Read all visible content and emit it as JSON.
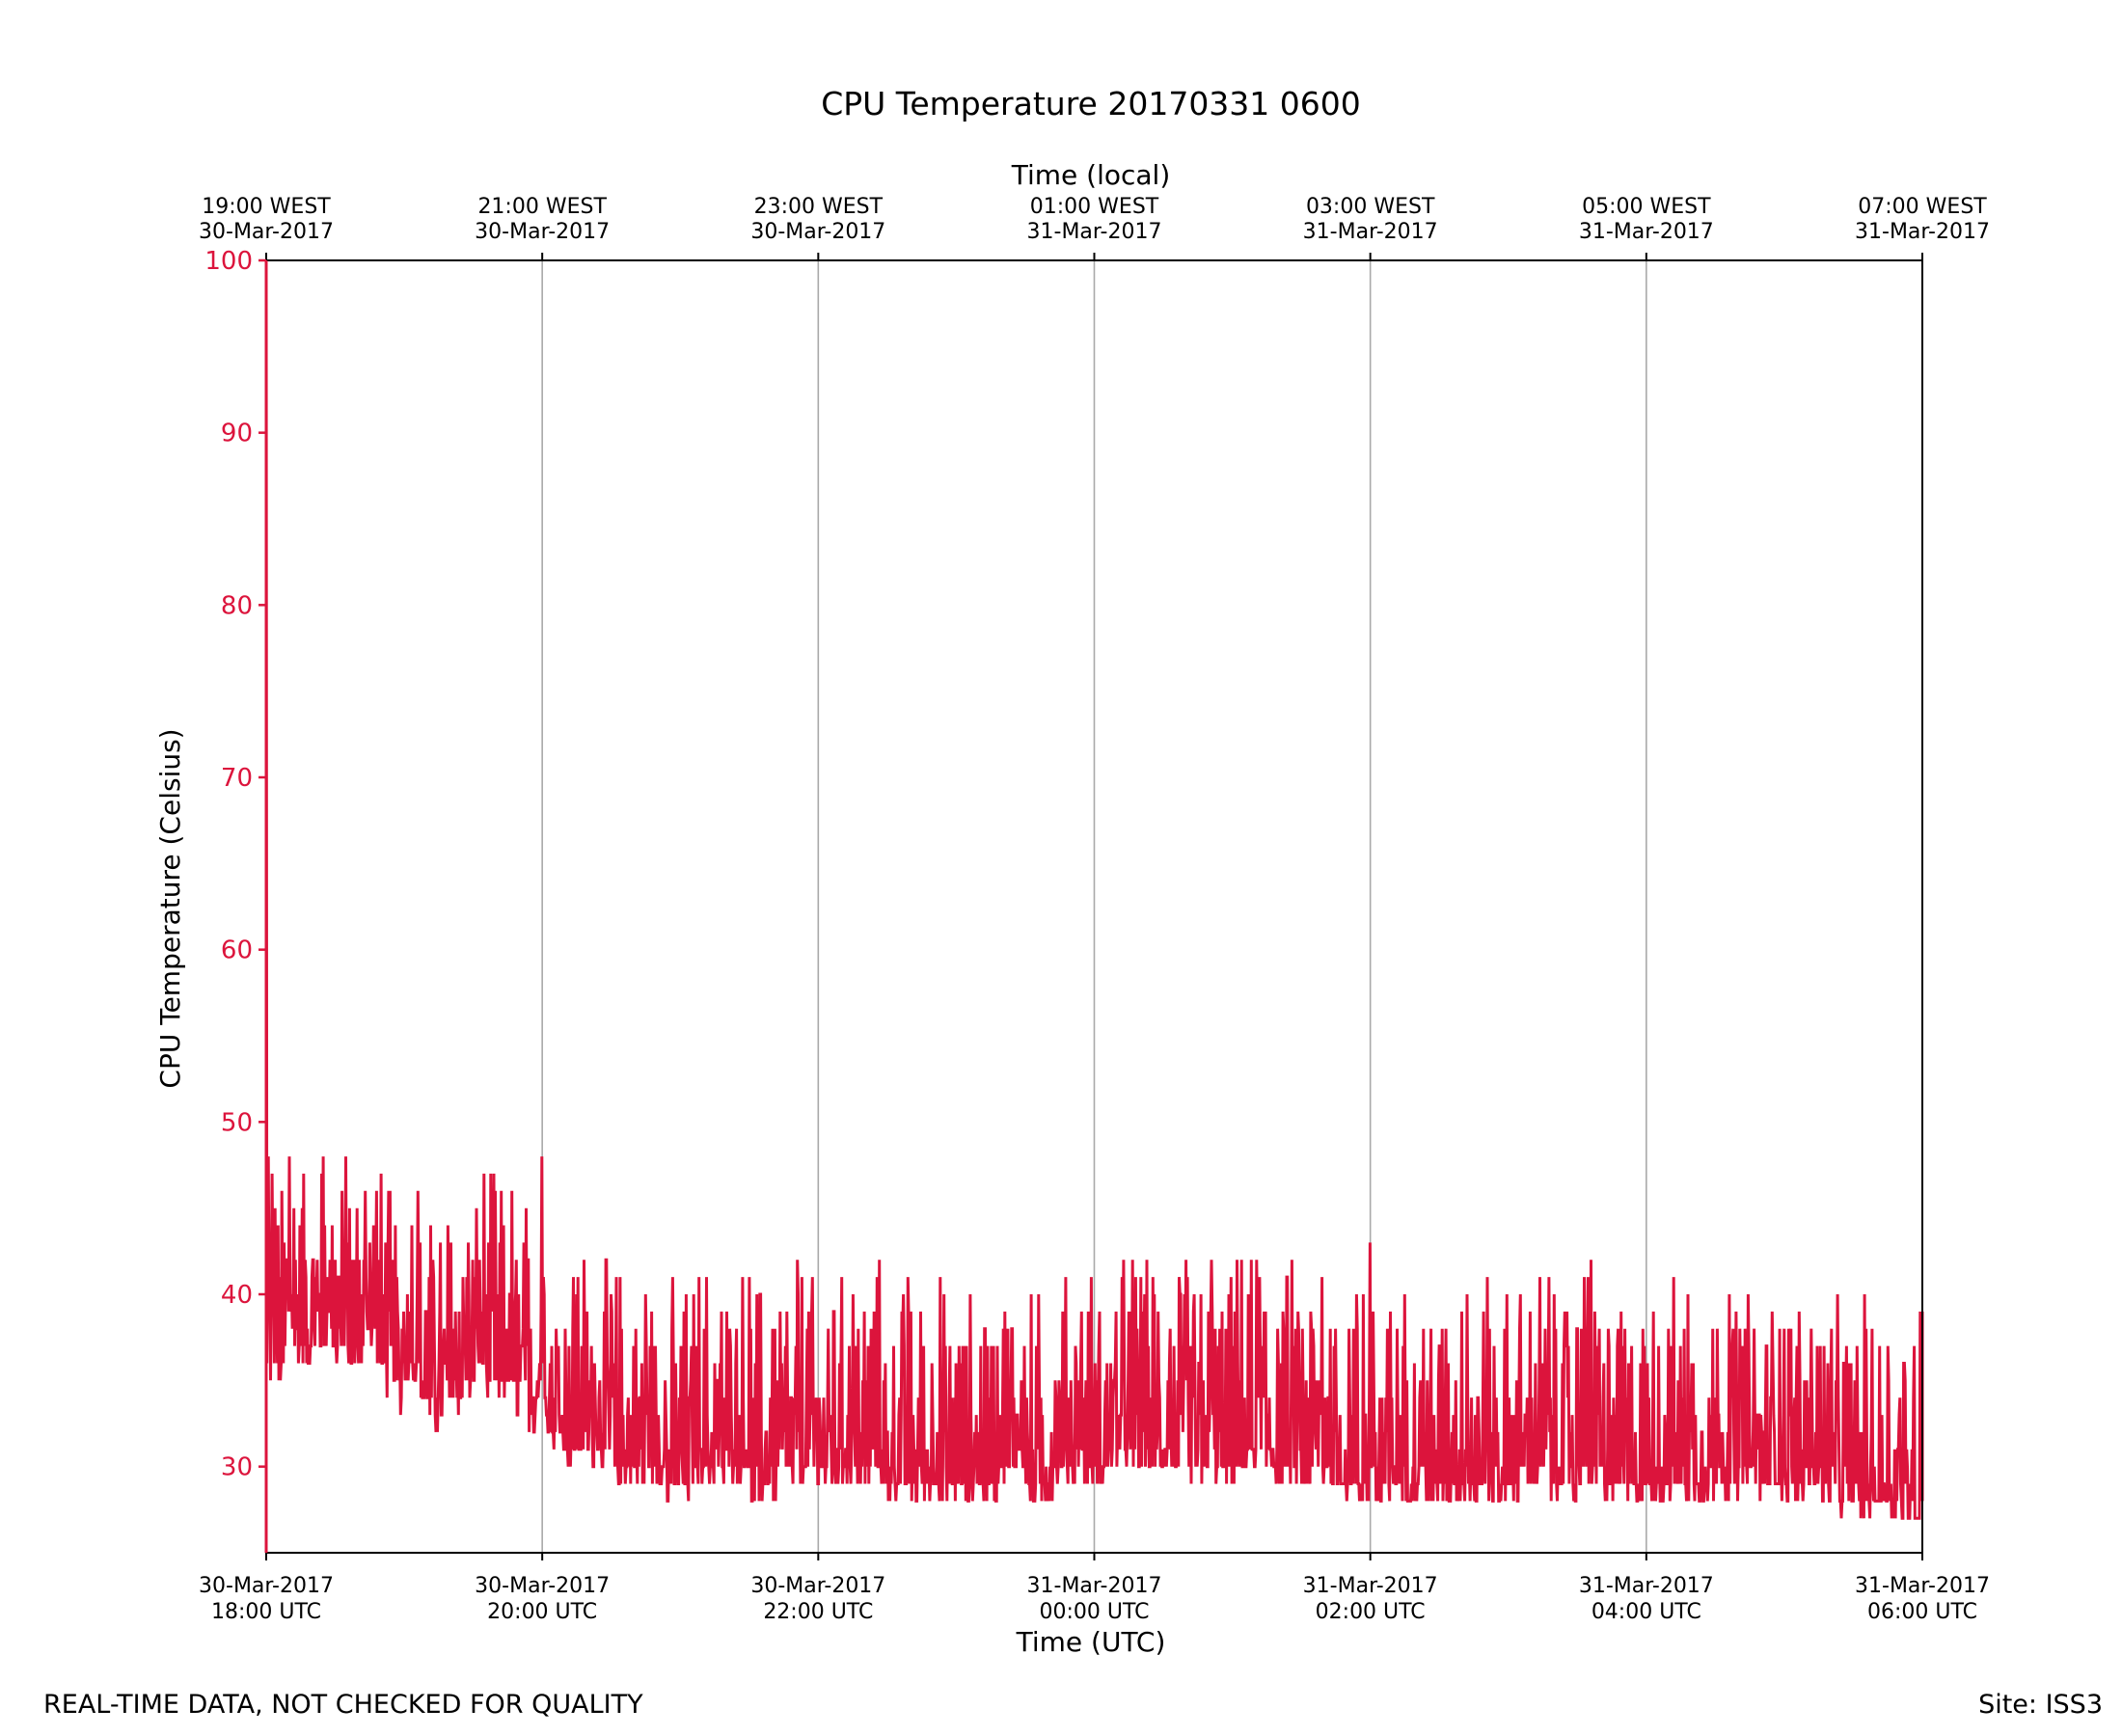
{
  "chart_data": {
    "type": "line",
    "title": "CPU Temperature 20170331 0600",
    "xlabel": "Time (UTC)",
    "x2label": "Time (local)",
    "ylabel": "CPU Temperature (Celsius)",
    "ylim": [
      25,
      100
    ],
    "yticks": [
      "30",
      "40",
      "50",
      "60",
      "70",
      "80",
      "90",
      "100"
    ],
    "xlim_hours": [
      0,
      12
    ],
    "grid": "vertical",
    "colors": {
      "series": "#dc143c",
      "ylabel": "#dc143c",
      "grid": "#a9a9a9",
      "axes": "#000000"
    },
    "x_ticks_utc": [
      {
        "hour": 0,
        "date": "30-Mar-2017",
        "time": "18:00 UTC"
      },
      {
        "hour": 2,
        "date": "30-Mar-2017",
        "time": "20:00 UTC"
      },
      {
        "hour": 4,
        "date": "30-Mar-2017",
        "time": "22:00 UTC"
      },
      {
        "hour": 6,
        "date": "31-Mar-2017",
        "time": "00:00 UTC"
      },
      {
        "hour": 8,
        "date": "31-Mar-2017",
        "time": "02:00 UTC"
      },
      {
        "hour": 10,
        "date": "31-Mar-2017",
        "time": "04:00 UTC"
      },
      {
        "hour": 12,
        "date": "31-Mar-2017",
        "time": "06:00 UTC"
      }
    ],
    "x_ticks_local": [
      {
        "hour": 0,
        "time": "19:00 WEST",
        "date": "30-Mar-2017"
      },
      {
        "hour": 2,
        "time": "21:00 WEST",
        "date": "30-Mar-2017"
      },
      {
        "hour": 4,
        "time": "23:00 WEST",
        "date": "30-Mar-2017"
      },
      {
        "hour": 6,
        "time": "01:00 WEST",
        "date": "31-Mar-2017"
      },
      {
        "hour": 8,
        "time": "03:00 WEST",
        "date": "31-Mar-2017"
      },
      {
        "hour": 10,
        "time": "05:00 WEST",
        "date": "31-Mar-2017"
      },
      {
        "hour": 12,
        "time": "07:00 WEST",
        "date": "31-Mar-2017"
      }
    ],
    "series": [
      {
        "x_hours": [
          0.0,
          0.01,
          0.02,
          0.05,
          0.1,
          0.15,
          0.25,
          0.35,
          0.45,
          0.55,
          0.65,
          0.75,
          0.85,
          0.95,
          1.05,
          1.15,
          1.25,
          1.35,
          1.45,
          1.55,
          1.65,
          1.75,
          1.85,
          1.95,
          2.0,
          2.05,
          2.2,
          2.4,
          2.6,
          2.8,
          3.0,
          3.2,
          3.4,
          3.6,
          3.8,
          4.0,
          4.2,
          4.4,
          4.6,
          4.8,
          5.0,
          5.2,
          5.4,
          5.6,
          5.8,
          6.0,
          6.2,
          6.4,
          6.6,
          6.8,
          7.0,
          7.2,
          7.4,
          7.6,
          7.8,
          8.0,
          8.2,
          8.4,
          8.6,
          8.8,
          9.0,
          9.2,
          9.4,
          9.6,
          9.8,
          10.0,
          10.2,
          10.4,
          10.6,
          10.8,
          11.0,
          11.2,
          11.4,
          11.6,
          11.8,
          11.9,
          12.0
        ],
        "y": [
          25,
          100,
          37,
          40,
          37,
          41,
          39,
          39,
          40,
          39,
          39,
          40,
          38,
          36,
          38,
          36,
          35,
          36,
          37,
          38,
          37,
          37,
          36,
          35,
          38,
          34,
          33,
          33,
          32,
          32,
          31,
          32,
          32,
          31,
          32,
          32,
          32,
          32,
          31,
          31,
          31,
          31,
          32,
          31,
          32,
          32,
          33,
          33,
          33,
          32,
          32,
          33,
          32,
          32,
          31,
          31,
          31,
          31,
          31,
          31,
          31,
          32,
          31,
          32,
          31,
          31,
          31,
          31,
          31,
          31,
          31,
          31,
          30,
          30,
          30,
          29,
          28
        ],
        "noise_low": [
          0,
          0,
          2,
          2,
          2,
          2,
          2,
          2,
          2,
          2,
          2,
          2,
          2,
          2,
          2,
          2,
          2,
          2,
          2,
          2,
          2,
          2,
          2,
          2,
          2,
          2,
          2,
          2,
          2,
          2,
          2,
          2,
          2,
          2,
          2,
          2,
          2,
          2,
          2,
          2,
          2,
          2,
          2,
          2,
          2,
          2,
          2,
          2,
          2,
          2,
          2,
          2,
          2,
          2,
          2,
          2,
          2,
          2,
          2,
          2,
          2,
          2,
          2,
          2,
          2,
          2,
          2,
          2,
          2,
          2,
          2,
          2,
          2,
          2,
          2,
          2,
          1
        ],
        "peaks": [
          {
            "x": 0.04,
            "y": 47
          },
          {
            "x": 0.17,
            "y": 48
          },
          {
            "x": 0.4,
            "y": 47
          },
          {
            "x": 0.55,
            "y": 46
          },
          {
            "x": 0.8,
            "y": 46
          },
          {
            "x": 1.1,
            "y": 46
          },
          {
            "x": 1.65,
            "y": 47
          },
          {
            "x": 2.0,
            "y": 48
          },
          {
            "x": 2.25,
            "y": 40
          },
          {
            "x": 2.5,
            "y": 40
          },
          {
            "x": 2.75,
            "y": 40
          },
          {
            "x": 3.1,
            "y": 40
          },
          {
            "x": 3.5,
            "y": 41
          },
          {
            "x": 3.85,
            "y": 42
          },
          {
            "x": 4.25,
            "y": 40
          },
          {
            "x": 4.65,
            "y": 41
          },
          {
            "x": 5.4,
            "y": 38
          },
          {
            "x": 6.3,
            "y": 41
          },
          {
            "x": 6.85,
            "y": 42
          },
          {
            "x": 7.2,
            "y": 41
          },
          {
            "x": 7.65,
            "y": 41
          },
          {
            "x": 7.95,
            "y": 40
          },
          {
            "x": 8.0,
            "y": 43
          },
          {
            "x": 8.7,
            "y": 40
          },
          {
            "x": 9.5,
            "y": 38
          },
          {
            "x": 9.55,
            "y": 41
          },
          {
            "x": 9.6,
            "y": 42
          },
          {
            "x": 10.3,
            "y": 40
          },
          {
            "x": 10.6,
            "y": 40
          },
          {
            "x": 11.45,
            "y": 37
          },
          {
            "x": 11.75,
            "y": 37
          },
          {
            "x": 12.0,
            "y": 39
          }
        ]
      }
    ]
  },
  "footer": {
    "left": "REAL-TIME DATA, NOT CHECKED FOR QUALITY",
    "right": "Site: ISS3"
  }
}
